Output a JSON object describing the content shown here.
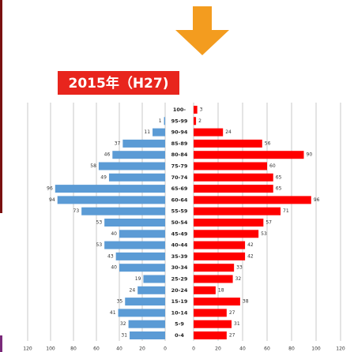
{
  "chart_data": {
    "type": "bar",
    "orientation": "horizontal",
    "title": "2015年（H27)",
    "categories": [
      "100-",
      "95-99",
      "90-94",
      "85-89",
      "80-84",
      "75-79",
      "70-74",
      "65-69",
      "60-64",
      "55-59",
      "50-54",
      "45-49",
      "40-44",
      "35-39",
      "30-34",
      "25-29",
      "20-24",
      "15-19",
      "10-14",
      "5-9",
      "0-4"
    ],
    "series": [
      {
        "side": "left",
        "color": "#5b9bd5",
        "values": [
          null,
          1,
          11,
          37,
          46,
          58,
          49,
          96,
          94,
          73,
          53,
          40,
          53,
          43,
          40,
          19,
          24,
          35,
          41,
          32,
          31
        ]
      },
      {
        "side": "right",
        "color": "#ff0000",
        "values": [
          3,
          2,
          24,
          56,
          90,
          60,
          65,
          65,
          96,
          71,
          57,
          53,
          42,
          42,
          33,
          32,
          18,
          38,
          27,
          31,
          27
        ]
      }
    ],
    "xlim_left": [
      120,
      0
    ],
    "xticks_left": [
      120,
      100,
      80,
      60,
      40,
      20,
      0
    ],
    "xlim_right": [
      0,
      120
    ],
    "xticks_right": [
      0,
      20,
      40,
      60,
      80,
      100,
      120
    ],
    "grid": true
  }
}
